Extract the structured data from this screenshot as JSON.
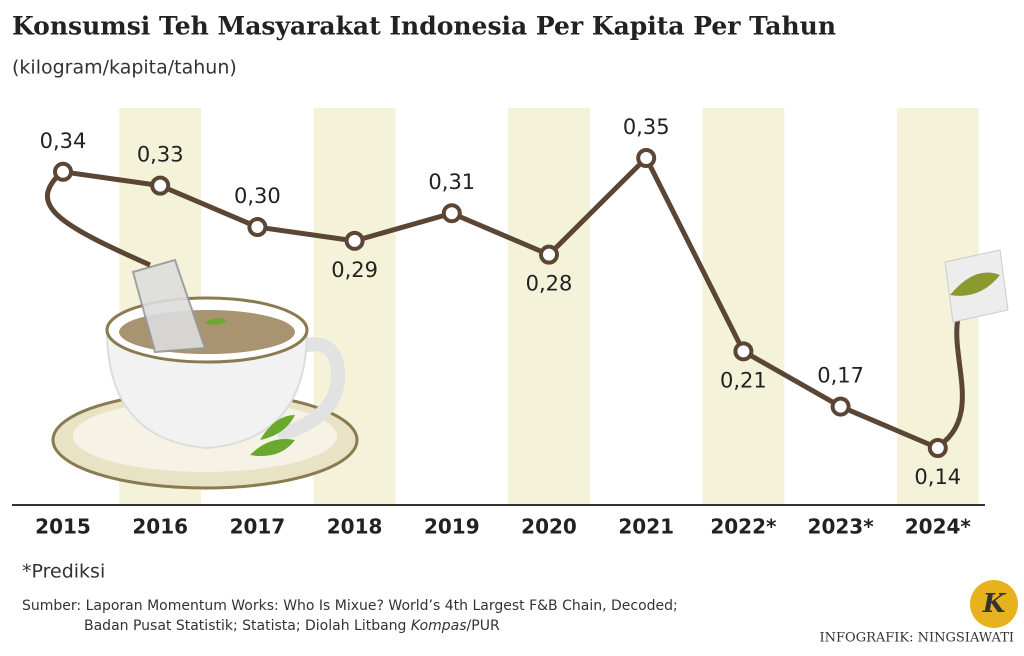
{
  "chart_data": {
    "type": "line",
    "title": "Konsumsi Teh Masyarakat Indonesia Per Kapita Per Tahun",
    "subtitle": "(kilogram/kapita/tahun)",
    "categories": [
      "2015",
      "2016",
      "2017",
      "2018",
      "2019",
      "2020",
      "2021",
      "2022*",
      "2023*",
      "2024*"
    ],
    "values": [
      0.34,
      0.33,
      0.3,
      0.29,
      0.31,
      0.28,
      0.35,
      0.21,
      0.17,
      0.14
    ],
    "value_labels": [
      "0,34",
      "0,33",
      "0,30",
      "0,29",
      "0,31",
      "0,28",
      "0,35",
      "0,21",
      "0,17",
      "0,14"
    ],
    "color": "#5b4636",
    "band_color": "#f4f3da",
    "footnote": "*Prediksi",
    "source": {
      "line1": "Sumber: Laporan Momentum Works: Who Is Mixue? World’s 4th Largest F&B Chain, Decoded;",
      "line2_a": "Badan Pusat Statistik; Statista; Diolah Litbang ",
      "line2_b": "Kompas",
      "line2_c": "/PUR"
    },
    "credit": "INFOGRAFIK: NINGSIAWATI",
    "logo": "K"
  }
}
